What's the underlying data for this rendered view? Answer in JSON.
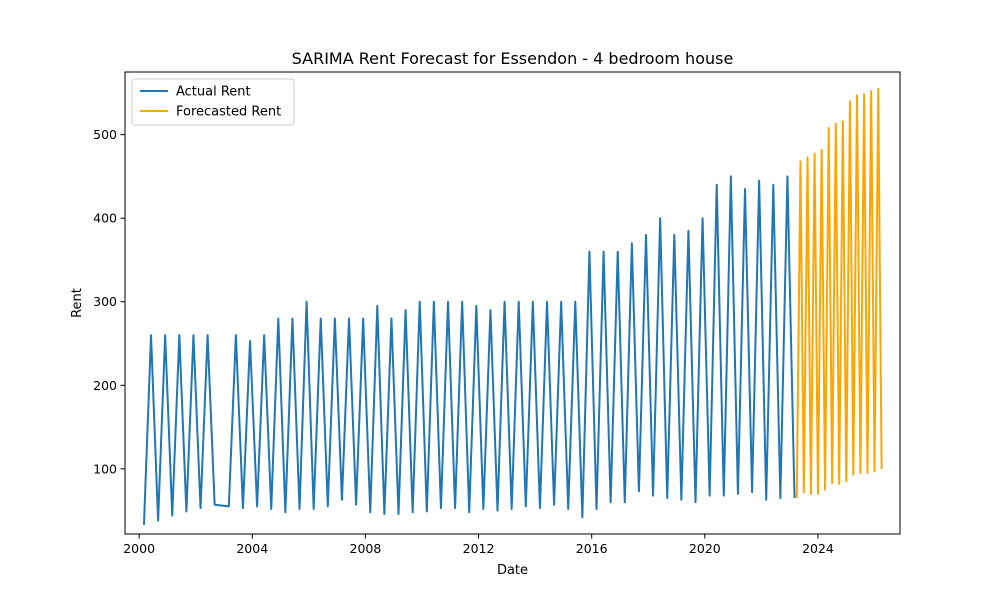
{
  "chart_data": {
    "type": "line",
    "title": "SARIMA Rent Forecast for Essendon - 4 bedroom house",
    "xlabel": "Date",
    "ylabel": "Rent",
    "xlim": [
      1999.5,
      2026.9
    ],
    "ylim": [
      22,
      575
    ],
    "x_ticks": [
      2000,
      2004,
      2008,
      2012,
      2016,
      2020,
      2024
    ],
    "x_tick_labels": [
      "2000",
      "2004",
      "2008",
      "2012",
      "2016",
      "2020",
      "2024"
    ],
    "y_ticks": [
      100,
      200,
      300,
      400,
      500
    ],
    "y_tick_labels": [
      "100",
      "200",
      "300",
      "400",
      "500"
    ],
    "grid": false,
    "legend_position": "upper-left",
    "series": [
      {
        "name": "Actual Rent",
        "color": "#1f77b4",
        "x": [
          2000.17,
          2000.42,
          2000.67,
          2000.92,
          2001.17,
          2001.42,
          2001.67,
          2001.92,
          2002.17,
          2002.42,
          2002.67,
          2003.17,
          2003.42,
          2003.67,
          2003.92,
          2004.17,
          2004.42,
          2004.67,
          2004.92,
          2005.17,
          2005.42,
          2005.67,
          2005.92,
          2006.17,
          2006.42,
          2006.67,
          2006.92,
          2007.17,
          2007.42,
          2007.67,
          2007.92,
          2008.17,
          2008.42,
          2008.67,
          2008.92,
          2009.17,
          2009.42,
          2009.67,
          2009.92,
          2010.17,
          2010.42,
          2010.67,
          2010.92,
          2011.17,
          2011.42,
          2011.67,
          2011.92,
          2012.17,
          2012.42,
          2012.67,
          2012.92,
          2013.17,
          2013.42,
          2013.67,
          2013.92,
          2014.17,
          2014.42,
          2014.67,
          2014.92,
          2015.17,
          2015.42,
          2015.67,
          2015.92,
          2016.17,
          2016.42,
          2016.67,
          2016.92,
          2017.17,
          2017.42,
          2017.67,
          2017.92,
          2018.17,
          2018.42,
          2018.67,
          2018.92,
          2019.17,
          2019.42,
          2019.67,
          2019.92,
          2020.17,
          2020.42,
          2020.67,
          2020.92,
          2021.17,
          2021.42,
          2021.67,
          2021.92,
          2022.17,
          2022.42,
          2022.67,
          2022.92,
          2023.17
        ],
        "y": [
          33,
          260,
          38,
          260,
          44,
          260,
          49,
          260,
          53,
          260,
          57,
          55,
          260,
          53,
          253,
          55,
          260,
          52,
          280,
          48,
          280,
          52,
          300,
          52,
          280,
          55,
          280,
          63,
          280,
          57,
          280,
          48,
          295,
          46,
          280,
          46,
          290,
          48,
          300,
          49,
          300,
          53,
          300,
          53,
          300,
          48,
          295,
          52,
          290,
          50,
          300,
          52,
          300,
          55,
          300,
          53,
          300,
          57,
          300,
          52,
          300,
          42,
          360,
          52,
          360,
          60,
          360,
          60,
          370,
          73,
          380,
          68,
          400,
          65,
          380,
          63,
          385,
          60,
          400,
          68,
          440,
          68,
          450,
          70,
          435,
          72,
          445,
          63,
          440,
          65,
          450,
          65
        ]
      },
      {
        "name": "Forecasted Rent",
        "color": "#ffa500",
        "x": [
          2023.25,
          2023.38,
          2023.5,
          2023.63,
          2023.75,
          2023.88,
          2024.0,
          2024.13,
          2024.25,
          2024.38,
          2024.5,
          2024.63,
          2024.75,
          2024.88,
          2025.0,
          2025.13,
          2025.25,
          2025.38,
          2025.5,
          2025.63,
          2025.75,
          2025.88,
          2026.0,
          2026.13,
          2026.25
        ],
        "y": [
          65,
          468,
          72,
          473,
          70,
          477,
          70,
          482,
          75,
          508,
          83,
          513,
          82,
          516,
          85,
          540,
          93,
          547,
          95,
          548,
          95,
          552,
          97,
          555,
          100
        ]
      }
    ]
  }
}
